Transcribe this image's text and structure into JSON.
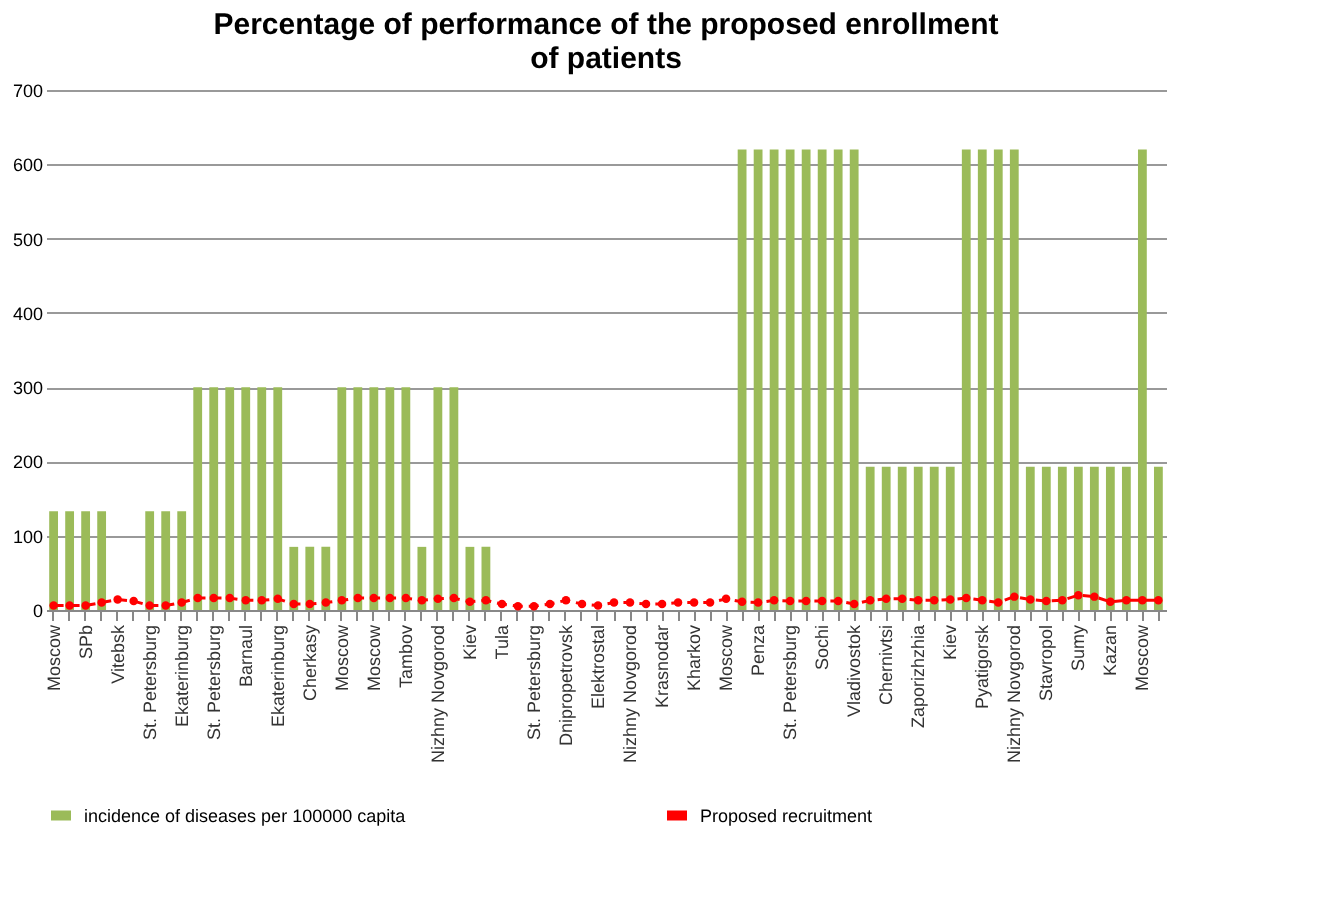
{
  "chart_data": {
    "type": "bar",
    "title": [
      "Percentage of performance of the proposed  enrollment",
      "of patients"
    ],
    "categories": [
      "Moscow",
      null,
      "SPb",
      null,
      "Vitebsk",
      null,
      "St. Petersburg",
      null,
      "Ekaterinburg",
      null,
      "St. Petersburg",
      null,
      "Barnaul",
      null,
      "Ekaterinburg",
      null,
      "Cherkasy",
      null,
      "Moscow",
      null,
      "Moscow",
      null,
      "Tambov",
      null,
      "Nizhny Novgorod",
      null,
      "Kiev",
      null,
      "Tula",
      null,
      "St. Petersburg",
      null,
      "Dnipropetrovsk",
      null,
      "Elektrostal",
      null,
      "Nizhny Novgorod",
      null,
      "Krasnodar",
      null,
      "Kharkov",
      null,
      "Moscow",
      null,
      "Penza",
      null,
      "St. Petersburg",
      null,
      "Sochi",
      null,
      "Vladivostok",
      null,
      "Chernivtsi",
      null,
      "Zaporizhzhia",
      null,
      "Kiev",
      null,
      "Pyatigorsk",
      null,
      "Nizhny Novgorod",
      null,
      "Stavropol",
      null,
      "Sumy",
      null,
      "Kazan",
      null,
      "Moscow",
      null
    ],
    "series": [
      {
        "name": "incidence of diseases per 100000 capita",
        "color": "#9bbb59",
        "values": [
          133,
          133,
          133,
          133,
          null,
          null,
          133,
          133,
          133,
          300,
          300,
          300,
          300,
          300,
          300,
          85,
          85,
          85,
          300,
          300,
          300,
          300,
          300,
          85,
          300,
          300,
          85,
          85,
          null,
          null,
          null,
          null,
          null,
          null,
          null,
          null,
          null,
          null,
          null,
          null,
          null,
          null,
          null,
          620,
          620,
          620,
          620,
          620,
          620,
          620,
          620,
          193,
          193,
          193,
          193,
          193,
          193,
          620,
          620,
          620,
          620,
          193,
          193,
          193,
          193,
          193,
          193,
          193,
          620,
          193
        ]
      },
      {
        "name": "Proposed recruitment",
        "type": "line",
        "color": "#ff0000",
        "line_style": "dashed",
        "marker": "circle",
        "values": [
          6,
          6,
          6,
          10,
          14,
          12,
          6,
          6,
          10,
          16,
          16,
          16,
          13,
          13,
          15,
          8,
          8,
          10,
          13,
          16,
          16,
          16,
          16,
          13,
          15,
          16,
          11,
          13,
          8,
          5,
          5,
          8,
          13,
          8,
          6,
          10,
          10,
          8,
          8,
          10,
          10,
          10,
          15,
          11,
          10,
          13,
          12,
          12,
          12,
          12,
          8,
          13,
          15,
          15,
          13,
          13,
          14,
          16,
          13,
          10,
          18,
          14,
          12,
          13,
          20,
          18,
          11,
          13,
          13,
          13
        ]
      }
    ],
    "ylim": [
      0,
      700
    ],
    "yticks": [
      0,
      100,
      200,
      300,
      400,
      500,
      600,
      700
    ],
    "grid": "y",
    "legend": "bottom"
  }
}
